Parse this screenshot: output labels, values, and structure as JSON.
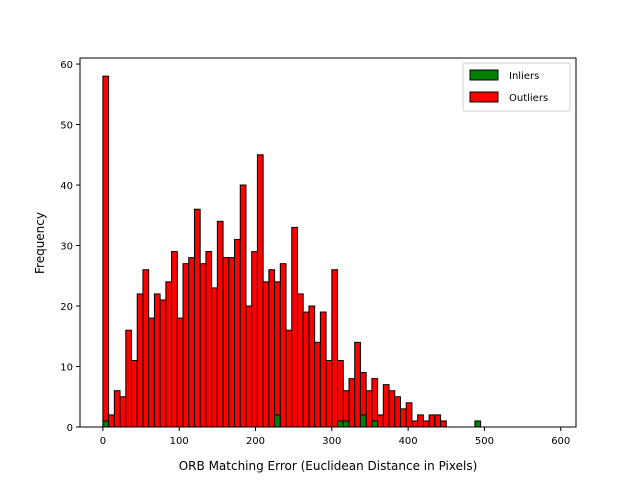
{
  "chart_data": {
    "type": "bar",
    "subtype": "stacked-histogram",
    "title": "",
    "xlabel": "ORB Matching Error (Euclidean Distance in Pixels)",
    "ylabel": "Frequency",
    "xlim": [
      -30,
      620
    ],
    "ylim": [
      0,
      61
    ],
    "bin_width": 7.5,
    "x_ticks": [
      0,
      100,
      200,
      300,
      400,
      500,
      600
    ],
    "y_ticks": [
      0,
      10,
      20,
      30,
      40,
      50,
      60
    ],
    "grid": false,
    "legend_position": "top-right",
    "x": [
      0,
      7.5,
      15,
      22.5,
      30,
      37.5,
      45,
      52.5,
      60,
      67.5,
      75,
      82.5,
      90,
      97.5,
      105,
      112.5,
      120,
      127.5,
      135,
      142.5,
      150,
      157.5,
      165,
      172.5,
      180,
      187.5,
      195,
      202.5,
      210,
      217.5,
      225,
      232.5,
      240,
      247.5,
      255,
      262.5,
      270,
      277.5,
      285,
      292.5,
      300,
      307.5,
      315,
      322.5,
      330,
      337.5,
      345,
      352.5,
      360,
      367.5,
      375,
      382.5,
      390,
      397.5,
      405,
      412.5,
      420,
      427.5,
      435,
      442.5,
      450,
      457.5,
      465,
      472.5,
      480,
      487.5,
      495,
      502.5,
      510,
      517.5,
      525,
      532.5,
      540,
      547.5,
      555,
      562.5,
      570,
      577.5,
      585
    ],
    "series": [
      {
        "name": "Inliers",
        "color": "#008000",
        "values": [
          1,
          0,
          0,
          0,
          0,
          0,
          0,
          0,
          0,
          0,
          0,
          0,
          0,
          0,
          0,
          0,
          0,
          0,
          0,
          0,
          0,
          0,
          0,
          0,
          0,
          0,
          0,
          0,
          0,
          0,
          2,
          0,
          0,
          0,
          0,
          0,
          0,
          0,
          0,
          0,
          0,
          1,
          1,
          0,
          0,
          2,
          0,
          1,
          0,
          0,
          0,
          0,
          0,
          0,
          0,
          0,
          0,
          0,
          0,
          0,
          0,
          0,
          0,
          0,
          0,
          1,
          0,
          0,
          0,
          0,
          0,
          0,
          0,
          0,
          0,
          0,
          0,
          0,
          0
        ]
      },
      {
        "name": "Outliers",
        "color": "#ff0000",
        "values": [
          57,
          2,
          6,
          5,
          16,
          11,
          22,
          26,
          18,
          22,
          21,
          24,
          29,
          18,
          27,
          28,
          36,
          27,
          29,
          23,
          34,
          28,
          28,
          31,
          40,
          20,
          29,
          45,
          24,
          26,
          22,
          27,
          16,
          33,
          22,
          19,
          20,
          14,
          19,
          11,
          26,
          10,
          5,
          8,
          14,
          7,
          6,
          7,
          2,
          7,
          6,
          5,
          3,
          4,
          1,
          2,
          1,
          2,
          2,
          1,
          0,
          0,
          0,
          0,
          0,
          0,
          0,
          0,
          0,
          0,
          0,
          0,
          0,
          0,
          0,
          0,
          0,
          0,
          0
        ]
      }
    ]
  }
}
